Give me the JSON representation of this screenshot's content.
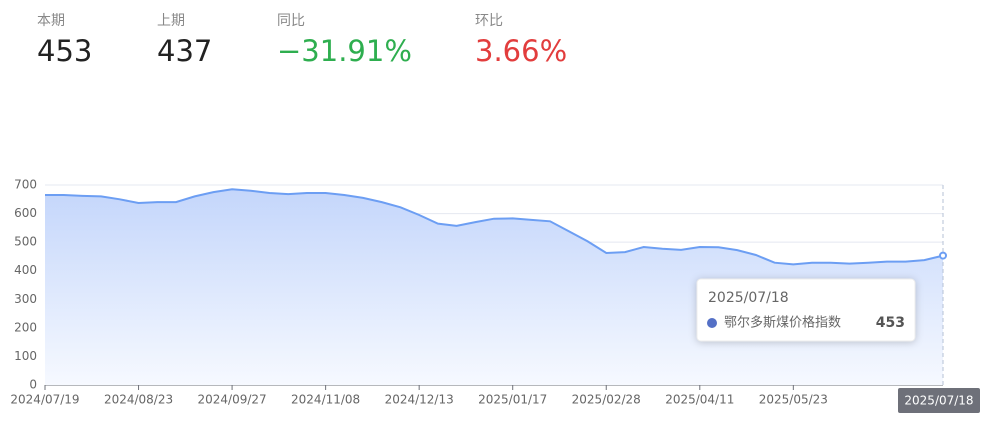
{
  "stats": [
    {
      "label": "本期",
      "value": "453"
    },
    {
      "label": "上期",
      "value": "437"
    },
    {
      "label": "同比",
      "value": "−31.91%",
      "color": "#2eae4f"
    },
    {
      "label": "环比",
      "value": "3.66%",
      "color": "#e23d3d"
    }
  ],
  "chart_data": {
    "type": "area",
    "categories": [
      "2024/07/19",
      null,
      null,
      null,
      null,
      "2024/08/23",
      null,
      null,
      null,
      null,
      "2024/09/27",
      null,
      null,
      null,
      null,
      "2024/11/08",
      null,
      null,
      null,
      null,
      "2024/12/13",
      null,
      null,
      null,
      null,
      "2025/01/17",
      null,
      null,
      null,
      null,
      "2025/02/28",
      null,
      null,
      null,
      null,
      "2025/04/11",
      null,
      null,
      null,
      null,
      "2025/05/23",
      null,
      null,
      null,
      null,
      null,
      null,
      null,
      "2025/07/18"
    ],
    "series": [
      {
        "name": "鄂尔多斯煤价格指数",
        "color": "#6c9ef3",
        "values": [
          665,
          665,
          662,
          660,
          650,
          637,
          640,
          640,
          660,
          675,
          685,
          680,
          672,
          668,
          672,
          672,
          665,
          655,
          640,
          622,
          595,
          565,
          557,
          570,
          582,
          583,
          578,
          573,
          538,
          503,
          462,
          465,
          483,
          477,
          473,
          483,
          482,
          472,
          455,
          428,
          422,
          428,
          428,
          425,
          428,
          432,
          432,
          437,
          453
        ]
      }
    ],
    "ylim": [
      0,
      700
    ],
    "yticks": [
      0,
      100,
      200,
      300,
      400,
      500,
      600,
      700
    ],
    "grid": true
  }
}
